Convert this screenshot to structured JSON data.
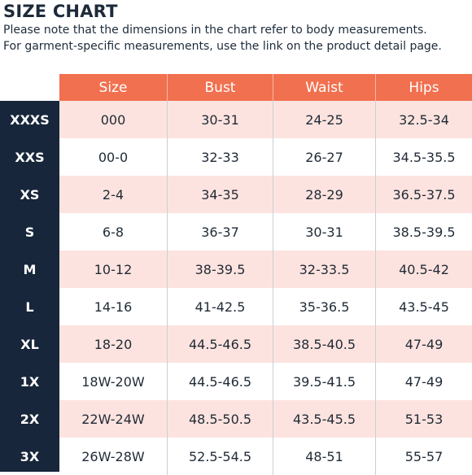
{
  "header": {
    "title": "SIZE CHART",
    "note_line1": "Please note that the dimensions in the chart refer to body measurements.",
    "note_line2": "For garment-specific measurements, use the link on the product detail page."
  },
  "table": {
    "columns": [
      "Size",
      "Bust",
      "Waist",
      "Hips"
    ],
    "rows": [
      {
        "label": "XXXS",
        "size": "000",
        "bust": "30-31",
        "waist": "24-25",
        "hips": "32.5-34"
      },
      {
        "label": "XXS",
        "size": "00-0",
        "bust": "32-33",
        "waist": "26-27",
        "hips": "34.5-35.5"
      },
      {
        "label": "XS",
        "size": "2-4",
        "bust": "34-35",
        "waist": "28-29",
        "hips": "36.5-37.5"
      },
      {
        "label": "S",
        "size": "6-8",
        "bust": "36-37",
        "waist": "30-31",
        "hips": "38.5-39.5"
      },
      {
        "label": "M",
        "size": "10-12",
        "bust": "38-39.5",
        "waist": "32-33.5",
        "hips": "40.5-42"
      },
      {
        "label": "L",
        "size": "14-16",
        "bust": "41-42.5",
        "waist": "35-36.5",
        "hips": "43.5-45"
      },
      {
        "label": "XL",
        "size": "18-20",
        "bust": "44.5-46.5",
        "waist": "38.5-40.5",
        "hips": "47-49"
      },
      {
        "label": "1X",
        "size": "18W-20W",
        "bust": "44.5-46.5",
        "waist": "39.5-41.5",
        "hips": "47-49"
      },
      {
        "label": "2X",
        "size": "22W-24W",
        "bust": "48.5-50.5",
        "waist": "43.5-45.5",
        "hips": "51-53"
      },
      {
        "label": "3X",
        "size": "26W-28W",
        "bust": "52.5-54.5",
        "waist": "48-51",
        "hips": "55-57"
      }
    ]
  },
  "colors": {
    "header_bg": "#f1704f",
    "sidebar_bg": "#17263a",
    "shaded_row": "#fde3df"
  }
}
